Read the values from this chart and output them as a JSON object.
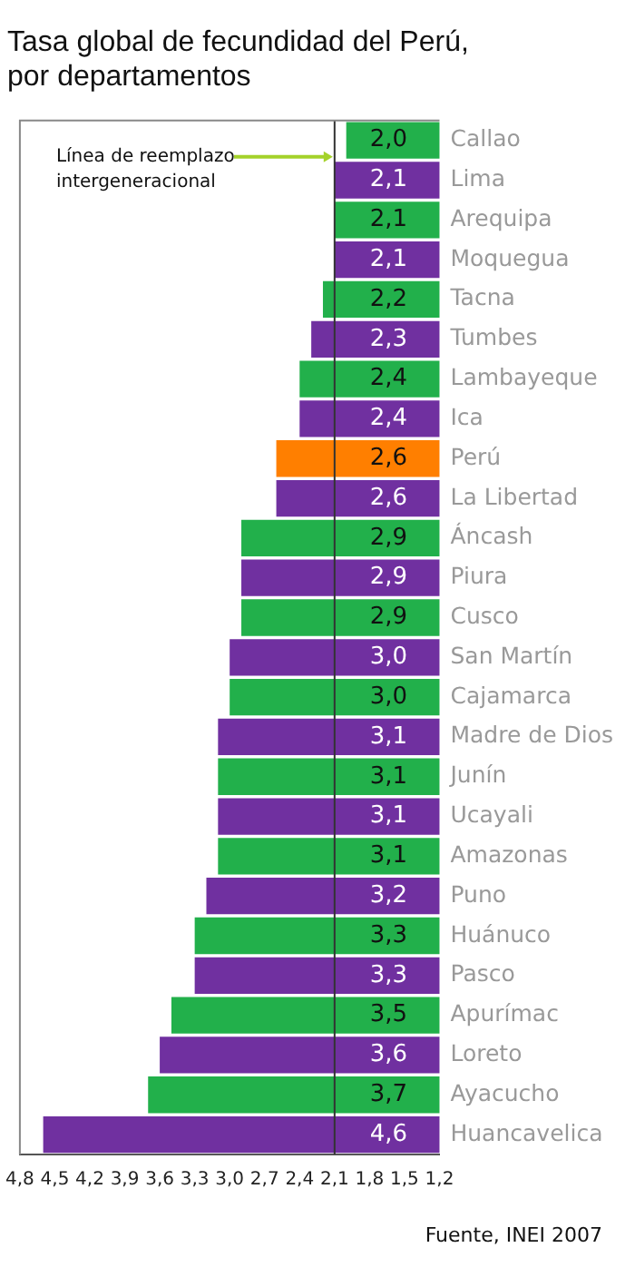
{
  "chart_data": {
    "type": "bar",
    "orientation": "horizontal",
    "title": "Tasa global de fecundidad del Perú,\npor departamentos",
    "categories": [
      "Callao",
      "Lima",
      "Arequipa",
      "Moquegua",
      "Tacna",
      "Tumbes",
      "Lambayeque",
      "Ica",
      "Perú",
      "La Libertad",
      "Áncash",
      "Piura",
      "Cusco",
      "San Martín",
      "Cajamarca",
      "Madre de Dios",
      "Junín",
      "Ucayali",
      "Amazonas",
      "Puno",
      "Huánuco",
      "Pasco",
      "Apurímac",
      "Loreto",
      "Ayacucho",
      "Huancavelica"
    ],
    "values": [
      2.0,
      2.1,
      2.1,
      2.1,
      2.2,
      2.3,
      2.4,
      2.4,
      2.6,
      2.6,
      2.9,
      2.9,
      2.9,
      3.0,
      3.0,
      3.1,
      3.1,
      3.1,
      3.1,
      3.2,
      3.3,
      3.3,
      3.5,
      3.6,
      3.7,
      4.6
    ],
    "value_labels": [
      "2,0",
      "2,1",
      "2,1",
      "2,1",
      "2,2",
      "2,3",
      "2,4",
      "2,4",
      "2,6",
      "2,6",
      "2,9",
      "2,9",
      "2,9",
      "3,0",
      "3,0",
      "3,1",
      "3,1",
      "3,1",
      "3,1",
      "3,2",
      "3,3",
      "3,3",
      "3,5",
      "3,6",
      "3,7",
      "4,6"
    ],
    "colors": [
      "#22b04b",
      "#7030a0",
      "#22b04b",
      "#7030a0",
      "#22b04b",
      "#7030a0",
      "#22b04b",
      "#7030a0",
      "#ff7f00",
      "#7030a0",
      "#22b04b",
      "#7030a0",
      "#22b04b",
      "#7030a0",
      "#22b04b",
      "#7030a0",
      "#22b04b",
      "#7030a0",
      "#22b04b",
      "#7030a0",
      "#22b04b",
      "#7030a0",
      "#22b04b",
      "#7030a0",
      "#22b04b",
      "#7030a0"
    ],
    "xlim": [
      4.8,
      1.2
    ],
    "xticks": [
      {
        "value": 4.8,
        "label": "4,8"
      },
      {
        "value": 4.5,
        "label": "4,5"
      },
      {
        "value": 4.2,
        "label": "4,2"
      },
      {
        "value": 3.9,
        "label": "3,9"
      },
      {
        "value": 3.6,
        "label": "3,6"
      },
      {
        "value": 3.3,
        "label": "3,3"
      },
      {
        "value": 3.0,
        "label": "3,0"
      },
      {
        "value": 2.7,
        "label": "2,7"
      },
      {
        "value": 2.4,
        "label": "2,4"
      },
      {
        "value": 2.1,
        "label": "2,1"
      },
      {
        "value": 1.8,
        "label": "1,8"
      },
      {
        "value": 1.5,
        "label": "1,5"
      },
      {
        "value": 1.2,
        "label": "1,2"
      }
    ],
    "ref_lines": [
      {
        "axis": "x",
        "value": 2.1,
        "label": "Línea de reemplazo\nintergeneracional",
        "color": "#333333"
      }
    ],
    "annotations": [
      "Fuente, INEI 2007"
    ],
    "grid": false,
    "legend": false
  }
}
